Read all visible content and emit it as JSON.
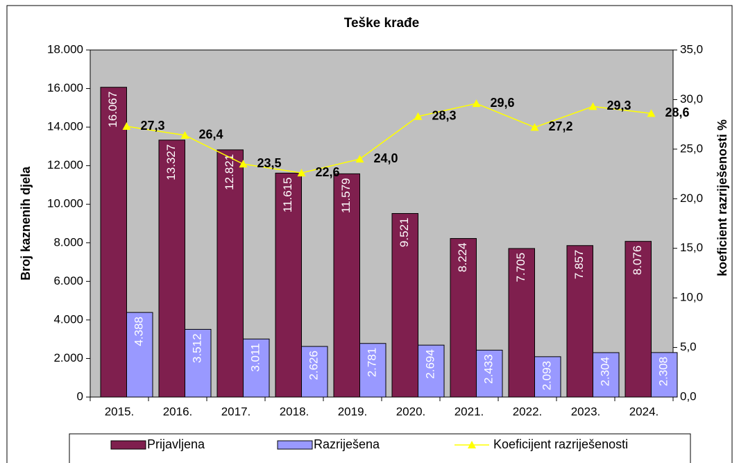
{
  "chart_data": {
    "type": "bar",
    "title": "Teške krađe",
    "y_label": "Broj kaznenih djela",
    "y2_label": "koeficient razriješenosti %",
    "categories": [
      "2015.",
      "2016.",
      "2017.",
      "2018.",
      "2019.",
      "2020.",
      "2021.",
      "2022.",
      "2023.",
      "2024."
    ],
    "series": [
      {
        "name": "Prijavljena",
        "color": "#7f1f4e",
        "type": "bar",
        "values": [
          16067,
          13327,
          12821,
          11615,
          11579,
          9521,
          8224,
          7705,
          7857,
          8076
        ],
        "value_labels": [
          "16.067",
          "13.327",
          "12.821",
          "11.615",
          "11.579",
          "9.521",
          "8.224",
          "7.705",
          "7.857",
          "8.076"
        ]
      },
      {
        "name": "Razriješena",
        "color": "#9999ff",
        "type": "bar",
        "values": [
          4388,
          3512,
          3011,
          2626,
          2781,
          2694,
          2433,
          2093,
          2304,
          2308
        ],
        "value_labels": [
          "4.388",
          "3.512",
          "3.011",
          "2.626",
          "2.781",
          "2.694",
          "2.433",
          "2.093",
          "2.304",
          "2.308"
        ]
      },
      {
        "name": "Koeficijent razriješenosti",
        "color": "#ffff00",
        "type": "line",
        "axis": "y2",
        "values": [
          27.3,
          26.4,
          23.5,
          22.6,
          24.0,
          28.3,
          29.6,
          27.2,
          29.3,
          28.6
        ],
        "value_labels": [
          "27,3",
          "26,4",
          "23,5",
          "22,6",
          "24,0",
          "28,3",
          "29,6",
          "27,2",
          "29,3",
          "28,6"
        ]
      }
    ],
    "ylim": [
      0,
      18000
    ],
    "yticks": [
      {
        "value": 0,
        "label": "0"
      },
      {
        "value": 2000,
        "label": "2.000"
      },
      {
        "value": 4000,
        "label": "4.000"
      },
      {
        "value": 6000,
        "label": "6.000"
      },
      {
        "value": 8000,
        "label": "8.000"
      },
      {
        "value": 10000,
        "label": "10.000"
      },
      {
        "value": 12000,
        "label": "12.000"
      },
      {
        "value": 14000,
        "label": "14.000"
      },
      {
        "value": 16000,
        "label": "16.000"
      },
      {
        "value": 18000,
        "label": "18.000"
      }
    ],
    "y2lim": [
      0,
      35
    ],
    "y2ticks": [
      {
        "value": 0,
        "label": "0,0"
      },
      {
        "value": 5,
        "label": "5,0"
      },
      {
        "value": 10,
        "label": "10,0"
      },
      {
        "value": 15,
        "label": "15,0"
      },
      {
        "value": 20,
        "label": "20,0"
      },
      {
        "value": 25,
        "label": "25,0"
      },
      {
        "value": 30,
        "label": "30,0"
      },
      {
        "value": 35,
        "label": "35,0"
      }
    ],
    "plot_background": "#c0c0c0",
    "legend": "bottom"
  }
}
